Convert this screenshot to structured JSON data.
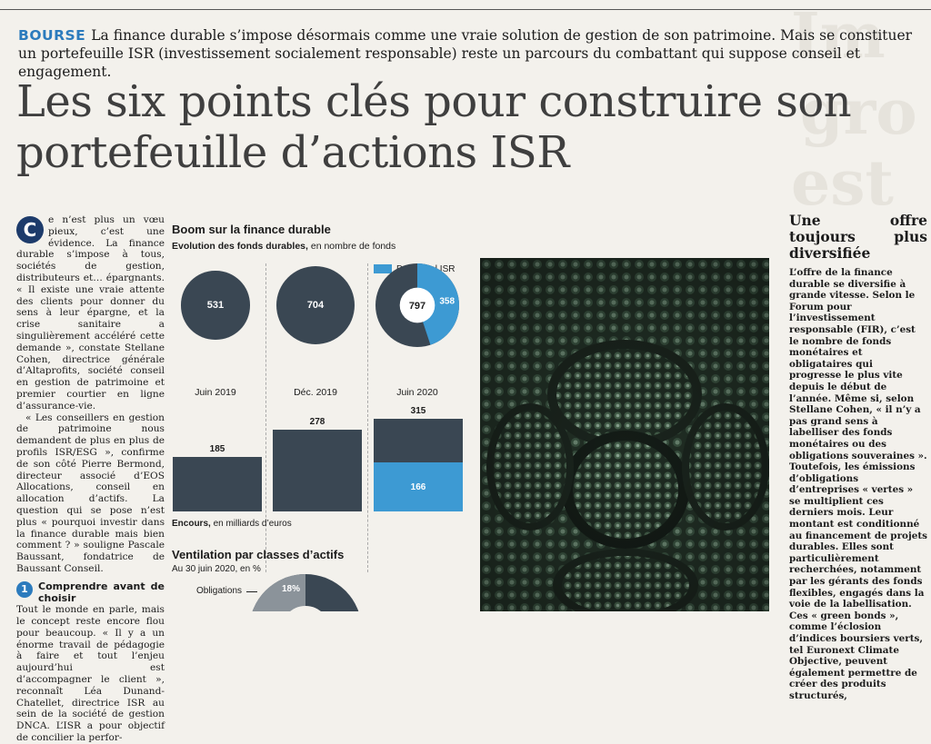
{
  "article": {
    "kicker": "BOURSE",
    "chapo": "La finance durable s’impose désormais comme une vraie solution de gestion de son patrimoine. Mais se constituer un portefeuille ISR (investissement socialement responsable) reste un parcours du combattant qui suppose conseil et engagement.",
    "headline": "Les six points clés pour construire son portefeuille d’actions ISR",
    "dropcap": "C",
    "para1": "e n’est plus un vœu pieux, c’est une évidence. La finance durable s’impose à tous, sociétés de gestion, distributeurs et… épargnants. « Il existe une vraie attente des clients pour donner du sens à leur épargne, et la crise sanitaire a singulièrement accéléré cette demande », constate Stellane Cohen, directrice générale d’Altaprofits, société conseil en gestion de patrimoine et premier courtier en ligne d’assurance-vie.",
    "para2": "« Les conseillers en gestion de patrimoine nous demandent de plus en plus de profils ISR/ESG », confirme de son côté Pierre Bermond, directeur associé d’EOS Allocations, conseil en allocation d’actifs. La question qui se pose n’est plus « pourquoi investir dans la finance durable mais bien comment ? » souligne Pascale Baussant, fondatrice de Baussant Conseil.",
    "section1_num": "1",
    "section1_title": "Comprendre avant de choisir",
    "para3": "Tout le monde en parle, mais le concept reste encore flou pour beaucoup. « Il y a un énorme travail de pédagogie à faire et tout l’enjeu aujourd’hui est d’accompagner le client », reconnaît Léa Dunand-Chatellet, directrice ISR au sein de la société de gestion DNCA. L’ISR a pour objectif de concilier la perfor-"
  },
  "infographic": {
    "title": "Boom sur la finance durable",
    "subtitle_bold": "Evolution des fonds durables,",
    "subtitle_rest": " en nombre de fonds",
    "legend_label": "Dont label ISR",
    "encours_bold": "Encours,",
    "encours_rest": " en milliards d’euros",
    "ventilation_title": "Ventilation par classes d’actifs",
    "ventilation_sub": "Au 30 juin 2020, en %",
    "ventilation_label": "Obligations",
    "ventilation_value": "18%",
    "colors": {
      "dark": "#3a4753",
      "blue": "#3d9ad3",
      "grey": "#8b939a"
    }
  },
  "chart_data": [
    {
      "type": "pie",
      "title": "Evolution des fonds durables",
      "categories": [
        "Juin 2019",
        "Déc. 2019",
        "Juin 2020"
      ],
      "series": [
        {
          "name": "Fonds durables",
          "values": [
            531,
            704,
            797
          ]
        },
        {
          "name": "Dont label ISR",
          "values": [
            null,
            null,
            358
          ]
        }
      ]
    },
    {
      "type": "bar",
      "title": "Encours",
      "categories": [
        "Juin 2019",
        "Déc. 2019",
        "Juin 2020"
      ],
      "series": [
        {
          "name": "Encours",
          "values": [
            185,
            278,
            315
          ]
        },
        {
          "name": "Dont label ISR",
          "values": [
            null,
            null,
            166
          ]
        }
      ]
    }
  ],
  "sidebar": {
    "title": "Une offre toujours plus diversifiée",
    "text": "L’offre de la finance durable se diversifie à grande vitesse. Selon le Forum pour l’investissement responsable (FIR), c’est le nombre de fonds monétaires et obligataires qui progresse le plus vite depuis le début de l’année. Même si, selon Stellane Cohen, « il n’y a pas grand sens à labelliser des fonds monétaires ou des obligations souveraines ». Toutefois, les émissions d’obligations d’entreprises « vertes » se multiplient ces derniers mois. Leur montant est conditionné au financement de projets durables. Elles sont particulièrement recherchées, notamment par les gérants des fonds flexibles, engagés dans la voie de la labellisation. Ces « green bonds », comme l’éclosion d’indices boursiers verts, tel Euronext Climate Objective, peuvent également permettre de créer des produits structurés,"
  }
}
